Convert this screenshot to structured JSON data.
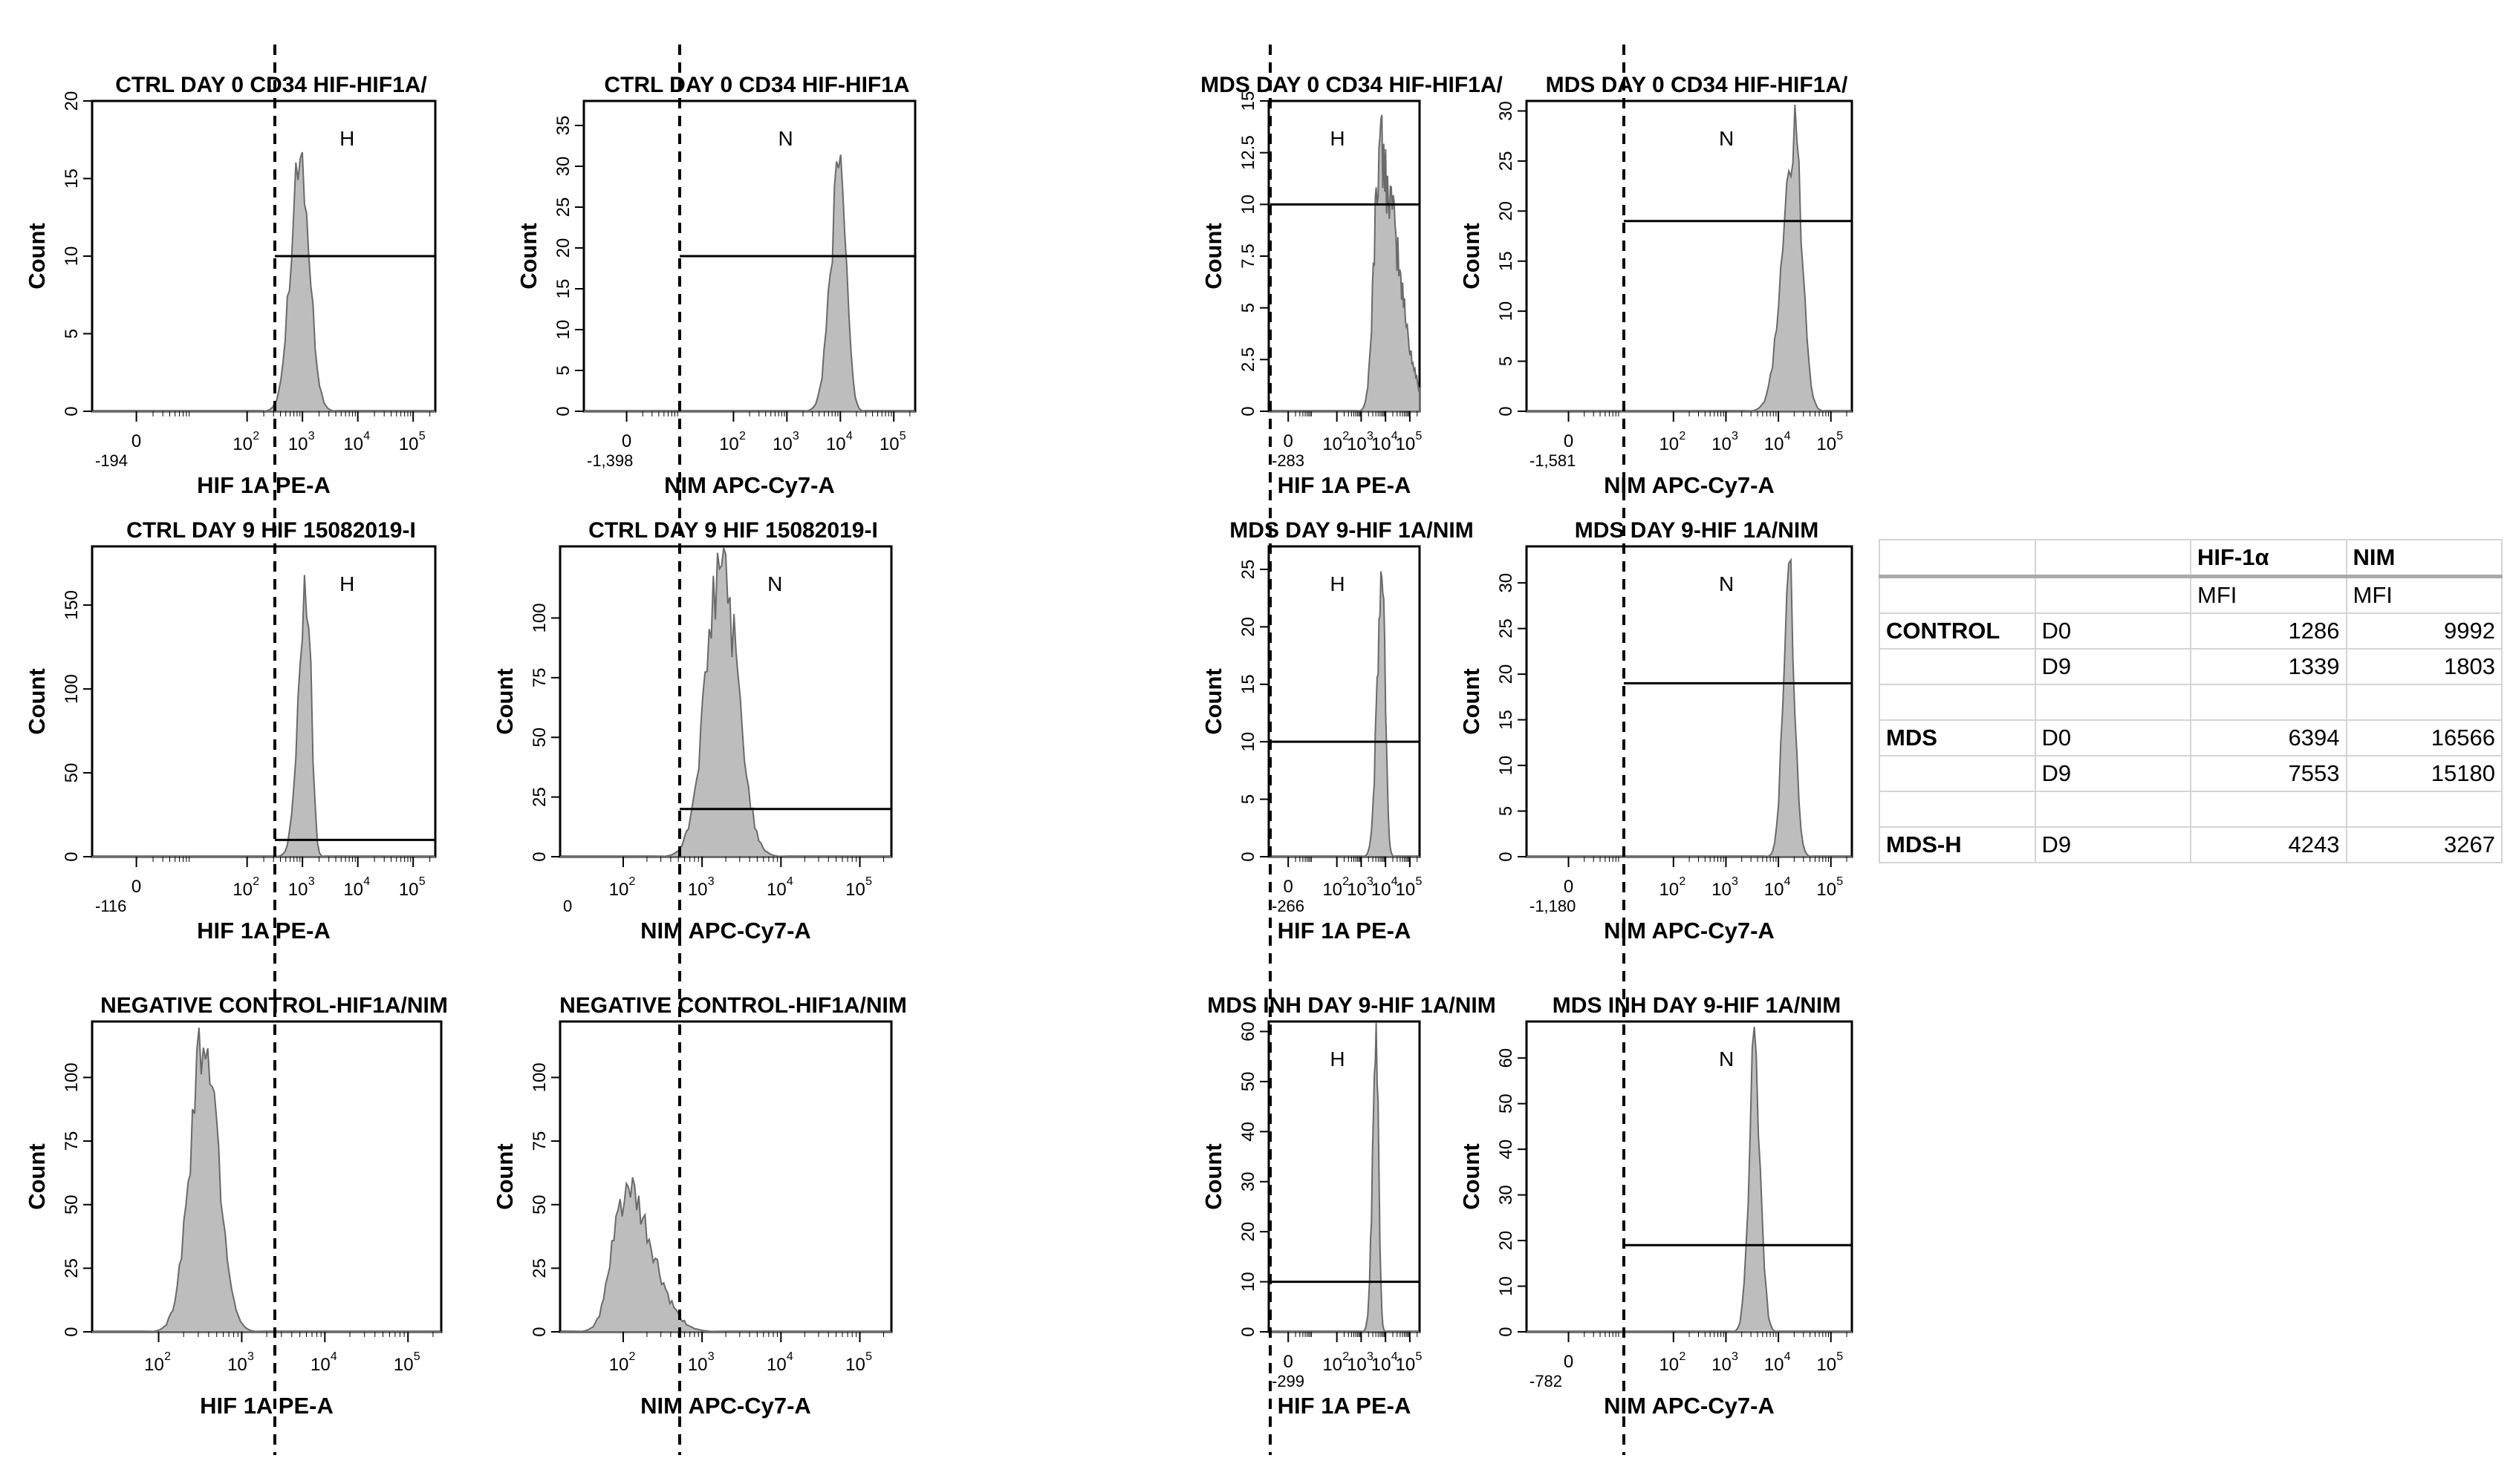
{
  "colors": {
    "fill": "#bdbdbd",
    "stroke": "#6a6a6a",
    "axis": "#000000",
    "grid_line": "#000000"
  },
  "chart_data": [
    {
      "type": "histogram",
      "title": "CTRL DAY 0 CD34 HIF-HIF1A/",
      "xlabel": "HIF 1A PE-A",
      "ylabel": "Count",
      "xaxis": "biexp",
      "xmin_label": "-194",
      "yticks": [
        0,
        5,
        10,
        15,
        20
      ],
      "ylim": [
        0,
        20
      ],
      "gate": {
        "label": "H",
        "y": 10
      },
      "peak": {
        "center": 2.95,
        "width": 0.17,
        "height": 17,
        "skew": 0
      }
    },
    {
      "type": "histogram",
      "title": "CTRL DAY 0 CD34 HIF-HIF1A",
      "xlabel": "NIM APC-Cy7-A",
      "ylabel": "Count",
      "xaxis": "biexp",
      "xmin_label": "-1,398",
      "yticks": [
        0,
        5,
        10,
        15,
        20,
        25,
        30,
        35
      ],
      "ylim": [
        0,
        38
      ],
      "gate": {
        "label": "N",
        "y": 19
      },
      "peak": {
        "center": 4.0,
        "width": 0.14,
        "height": 32,
        "skew": 0.2
      }
    },
    {
      "type": "histogram",
      "title": "MDS DAY 0 CD34 HIF-HIF1A/",
      "xlabel": "HIF 1A PE-A",
      "ylabel": "Count",
      "xaxis": "biexp",
      "xmin_label": "-283",
      "yticks": [
        0,
        2.5,
        5,
        7.5,
        10,
        12.5,
        15
      ],
      "ylim": [
        0,
        15
      ],
      "gate": {
        "label": "H",
        "y": 10
      },
      "peak": {
        "center": 3.8,
        "width": 0.36,
        "height": 13,
        "skew": -0.5
      }
    },
    {
      "type": "histogram",
      "title": "MDS DAY 0 CD34 HIF-HIF1A/",
      "xlabel": "NIM APC-Cy7-A",
      "ylabel": "Count",
      "xaxis": "biexp",
      "xmin_label": "-1,581",
      "yticks": [
        0,
        5,
        10,
        15,
        20,
        25,
        30
      ],
      "ylim": [
        0,
        31
      ],
      "gate": {
        "label": "N",
        "y": 19
      },
      "peak": {
        "center": 4.3,
        "width": 0.18,
        "height": 28,
        "skew": 0.2
      }
    },
    {
      "type": "histogram",
      "title": "CTRL  DAY 9 HIF 15082019-I",
      "xlabel": "HIF 1A PE-A",
      "ylabel": "Count",
      "xaxis": "biexp",
      "xmin_label": "-116",
      "yticks": [
        0,
        50,
        100,
        150
      ],
      "ylim": [
        0,
        185
      ],
      "gate": {
        "label": "H",
        "y": 10
      },
      "peak": {
        "center": 3.08,
        "width": 0.1,
        "height": 170,
        "skew": 0.3
      }
    },
    {
      "type": "histogram",
      "title": "CTRL  DAY 9 HIF 15082019-I",
      "xlabel": "NIM APC-Cy7-A",
      "ylabel": "Count",
      "xaxis": "log",
      "xmin_label": "0",
      "yticks": [
        0,
        25,
        50,
        75,
        100
      ],
      "ylim": [
        0,
        130
      ],
      "gate": {
        "label": "N",
        "y": 20
      },
      "peak": {
        "center": 3.25,
        "width": 0.2,
        "height": 125,
        "skew": 0
      }
    },
    {
      "type": "histogram",
      "title": "MDS  DAY 9-HIF 1A/NIM",
      "xlabel": "HIF 1A PE-A",
      "ylabel": "Count",
      "xaxis": "biexp",
      "xmin_label": "-266",
      "yticks": [
        0,
        5,
        10,
        15,
        20,
        25
      ],
      "ylim": [
        0,
        27
      ],
      "gate": {
        "label": "H",
        "y": 10
      },
      "peak": {
        "center": 3.85,
        "width": 0.16,
        "height": 25,
        "skew": 0.2
      }
    },
    {
      "type": "histogram",
      "title": "MDS  DAY 9-HIF 1A/NIM",
      "xlabel": "NIM APC-Cy7-A",
      "ylabel": "Count",
      "xaxis": "biexp",
      "xmin_label": "-1,180",
      "yticks": [
        0,
        5,
        10,
        15,
        20,
        25,
        30
      ],
      "ylim": [
        0,
        34
      ],
      "gate": {
        "label": "N",
        "y": 19
      },
      "peak": {
        "center": 4.2,
        "width": 0.11,
        "height": 32,
        "skew": 0
      }
    },
    {
      "type": "histogram",
      "title": "NEGATIVE CONTROL-HIF1A/NIM",
      "xlabel": "HIF 1A PE-A",
      "ylabel": "Count",
      "xaxis": "log",
      "xmin_label": "",
      "yticks": [
        0,
        25,
        50,
        75,
        100
      ],
      "ylim": [
        0,
        122
      ],
      "gate": null,
      "peak": {
        "center": 2.55,
        "width": 0.17,
        "height": 118,
        "skew": 0
      }
    },
    {
      "type": "histogram",
      "title": "NEGATIVE CONTROL-HIF1A/NIM",
      "xlabel": "NIM APC-Cy7-A",
      "ylabel": "Count",
      "xaxis": "log",
      "xmin_label": "",
      "yticks": [
        0,
        25,
        50,
        75,
        100
      ],
      "ylim": [
        0,
        122
      ],
      "gate": null,
      "peak": {
        "center": 2.05,
        "width": 0.22,
        "height": 57,
        "skew": -0.3
      }
    },
    {
      "type": "histogram",
      "title": "MDS INH DAY 9-HIF 1A/NIM",
      "xlabel": "HIF 1A PE-A",
      "ylabel": "Count",
      "xaxis": "biexp",
      "xmin_label": "-299",
      "yticks": [
        0,
        10,
        20,
        30,
        40,
        50,
        60
      ],
      "ylim": [
        0,
        62
      ],
      "gate": {
        "label": "H",
        "y": 10
      },
      "peak": {
        "center": 3.62,
        "width": 0.12,
        "height": 58,
        "skew": 0.2
      }
    },
    {
      "type": "histogram",
      "title": "MDS INH DAY 9-HIF 1A/NIM",
      "xlabel": "NIM APC-Cy7-A",
      "ylabel": "Count",
      "xaxis": "biexp",
      "xmin_label": "-782",
      "yticks": [
        0,
        10,
        20,
        30,
        40,
        50,
        60
      ],
      "ylim": [
        0,
        68
      ],
      "gate": {
        "label": "N",
        "y": 19
      },
      "peak": {
        "center": 3.55,
        "width": 0.11,
        "height": 63,
        "skew": 0
      }
    }
  ],
  "table": {
    "header": [
      "",
      "",
      "HIF-1α",
      "NIM"
    ],
    "subheader": [
      "",
      "",
      "MFI",
      "MFI"
    ],
    "rows": [
      [
        "CONTROL",
        "D0",
        "1286",
        "9992"
      ],
      [
        "",
        "D9",
        "1339",
        "1803"
      ],
      [
        "",
        "",
        "",
        ""
      ],
      [
        "MDS",
        "D0",
        "6394",
        "16566"
      ],
      [
        "",
        "D9",
        "7553",
        "15180"
      ],
      [
        "",
        "",
        "",
        ""
      ],
      [
        "MDS-H",
        "D9",
        "4243",
        "3267"
      ]
    ]
  }
}
